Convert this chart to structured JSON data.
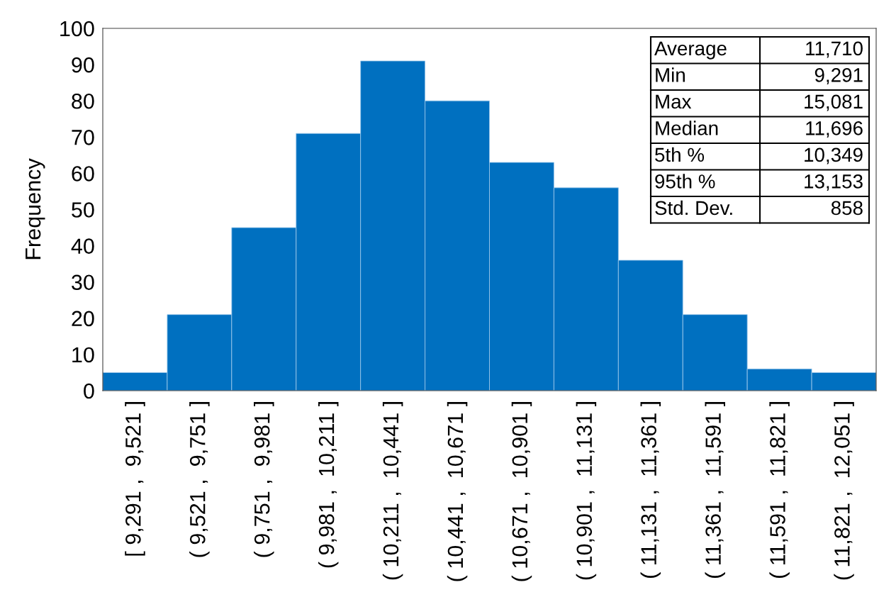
{
  "chart_data": {
    "type": "bar",
    "ylabel": "Frequency",
    "categories": [
      "[ 9,291 ,  9,521 ]",
      "( 9,521 ,  9,751 ]",
      "( 9,751 ,  9,981 ]",
      "( 9,981 ,  10,211 ]",
      "( 10,211 ,  10,441 ]",
      "( 10,441 ,  10,671 ]",
      "( 10,671 ,  10,901 ]",
      "( 10,901 ,  11,131 ]",
      "( 11,131 ,  11,361 ]",
      "( 11,361 ,  11,591 ]",
      "( 11,591 ,  11,821 ]",
      "( 11,821 ,  12,051 ]"
    ],
    "values": [
      5,
      21,
      45,
      71,
      91,
      80,
      63,
      56,
      36,
      21,
      6,
      5
    ],
    "color": "#0070c0",
    "ylim": [
      0,
      100
    ],
    "yticks": [
      0,
      10,
      20,
      30,
      40,
      50,
      60,
      70,
      80,
      90,
      100
    ],
    "grid": false,
    "annotations": [
      "Average",
      "11,710",
      "Min",
      "9,291",
      "Max",
      "15,081",
      "Median",
      "11,696",
      "5th %",
      "10,349",
      "95th %",
      "13,153",
      "Std. Dev.",
      "858"
    ]
  }
}
